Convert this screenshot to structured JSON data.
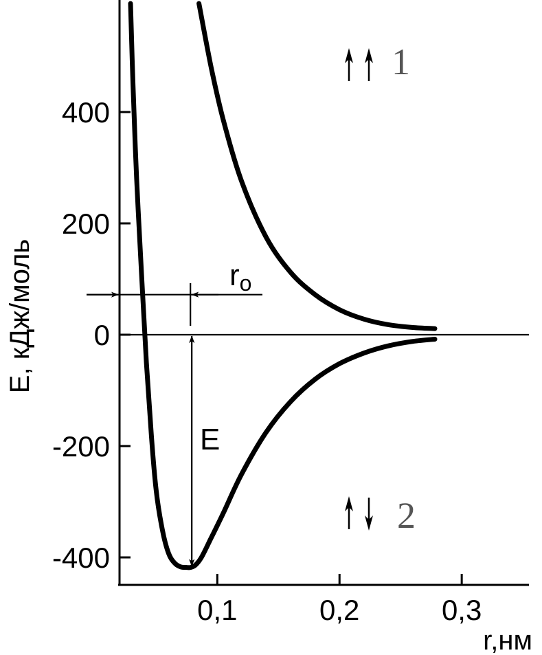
{
  "chart_data": {
    "type": "line",
    "xlabel": "r,нм",
    "ylabel": "E, кДж/моль",
    "xlim": [
      0.02,
      0.355
    ],
    "ylim": [
      -450,
      600
    ],
    "x_ticks": [
      0.1,
      0.2,
      0.3
    ],
    "x_tick_labels": [
      "0,1",
      "0,2",
      "0,3"
    ],
    "y_ticks": [
      400,
      200,
      0,
      -200,
      -400
    ],
    "y_tick_labels": [
      "400",
      "200",
      "0",
      "-200",
      "-400"
    ],
    "series": [
      {
        "name": "1",
        "spins": "↑↑",
        "x": [
          0.085,
          0.095,
          0.105,
          0.12,
          0.14,
          0.16,
          0.18,
          0.2,
          0.22,
          0.24,
          0.26,
          0.278
        ],
        "y": [
          595,
          480,
          385,
          275,
          175,
          112,
          72,
          45,
          28,
          18,
          13,
          11
        ]
      },
      {
        "name": "2",
        "spins": "↑↓",
        "x": [
          0.029,
          0.031,
          0.034,
          0.038,
          0.042,
          0.046,
          0.05,
          0.055,
          0.06,
          0.065,
          0.07,
          0.075,
          0.078,
          0.082,
          0.087,
          0.095,
          0.105,
          0.12,
          0.14,
          0.16,
          0.18,
          0.2,
          0.22,
          0.24,
          0.26,
          0.278
        ],
        "y": [
          595,
          450,
          280,
          110,
          -50,
          -180,
          -280,
          -350,
          -392,
          -410,
          -417,
          -418,
          -418,
          -414,
          -400,
          -365,
          -320,
          -250,
          -175,
          -120,
          -80,
          -52,
          -33,
          -20,
          -12,
          -8
        ]
      }
    ],
    "annotations": {
      "r0_label": "r",
      "r0_subscript": "o",
      "r0_value": 0.078,
      "r0_level": 72,
      "E_label": "E",
      "E_value": -418,
      "curve1_label": "1",
      "curve2_label": "2"
    }
  }
}
